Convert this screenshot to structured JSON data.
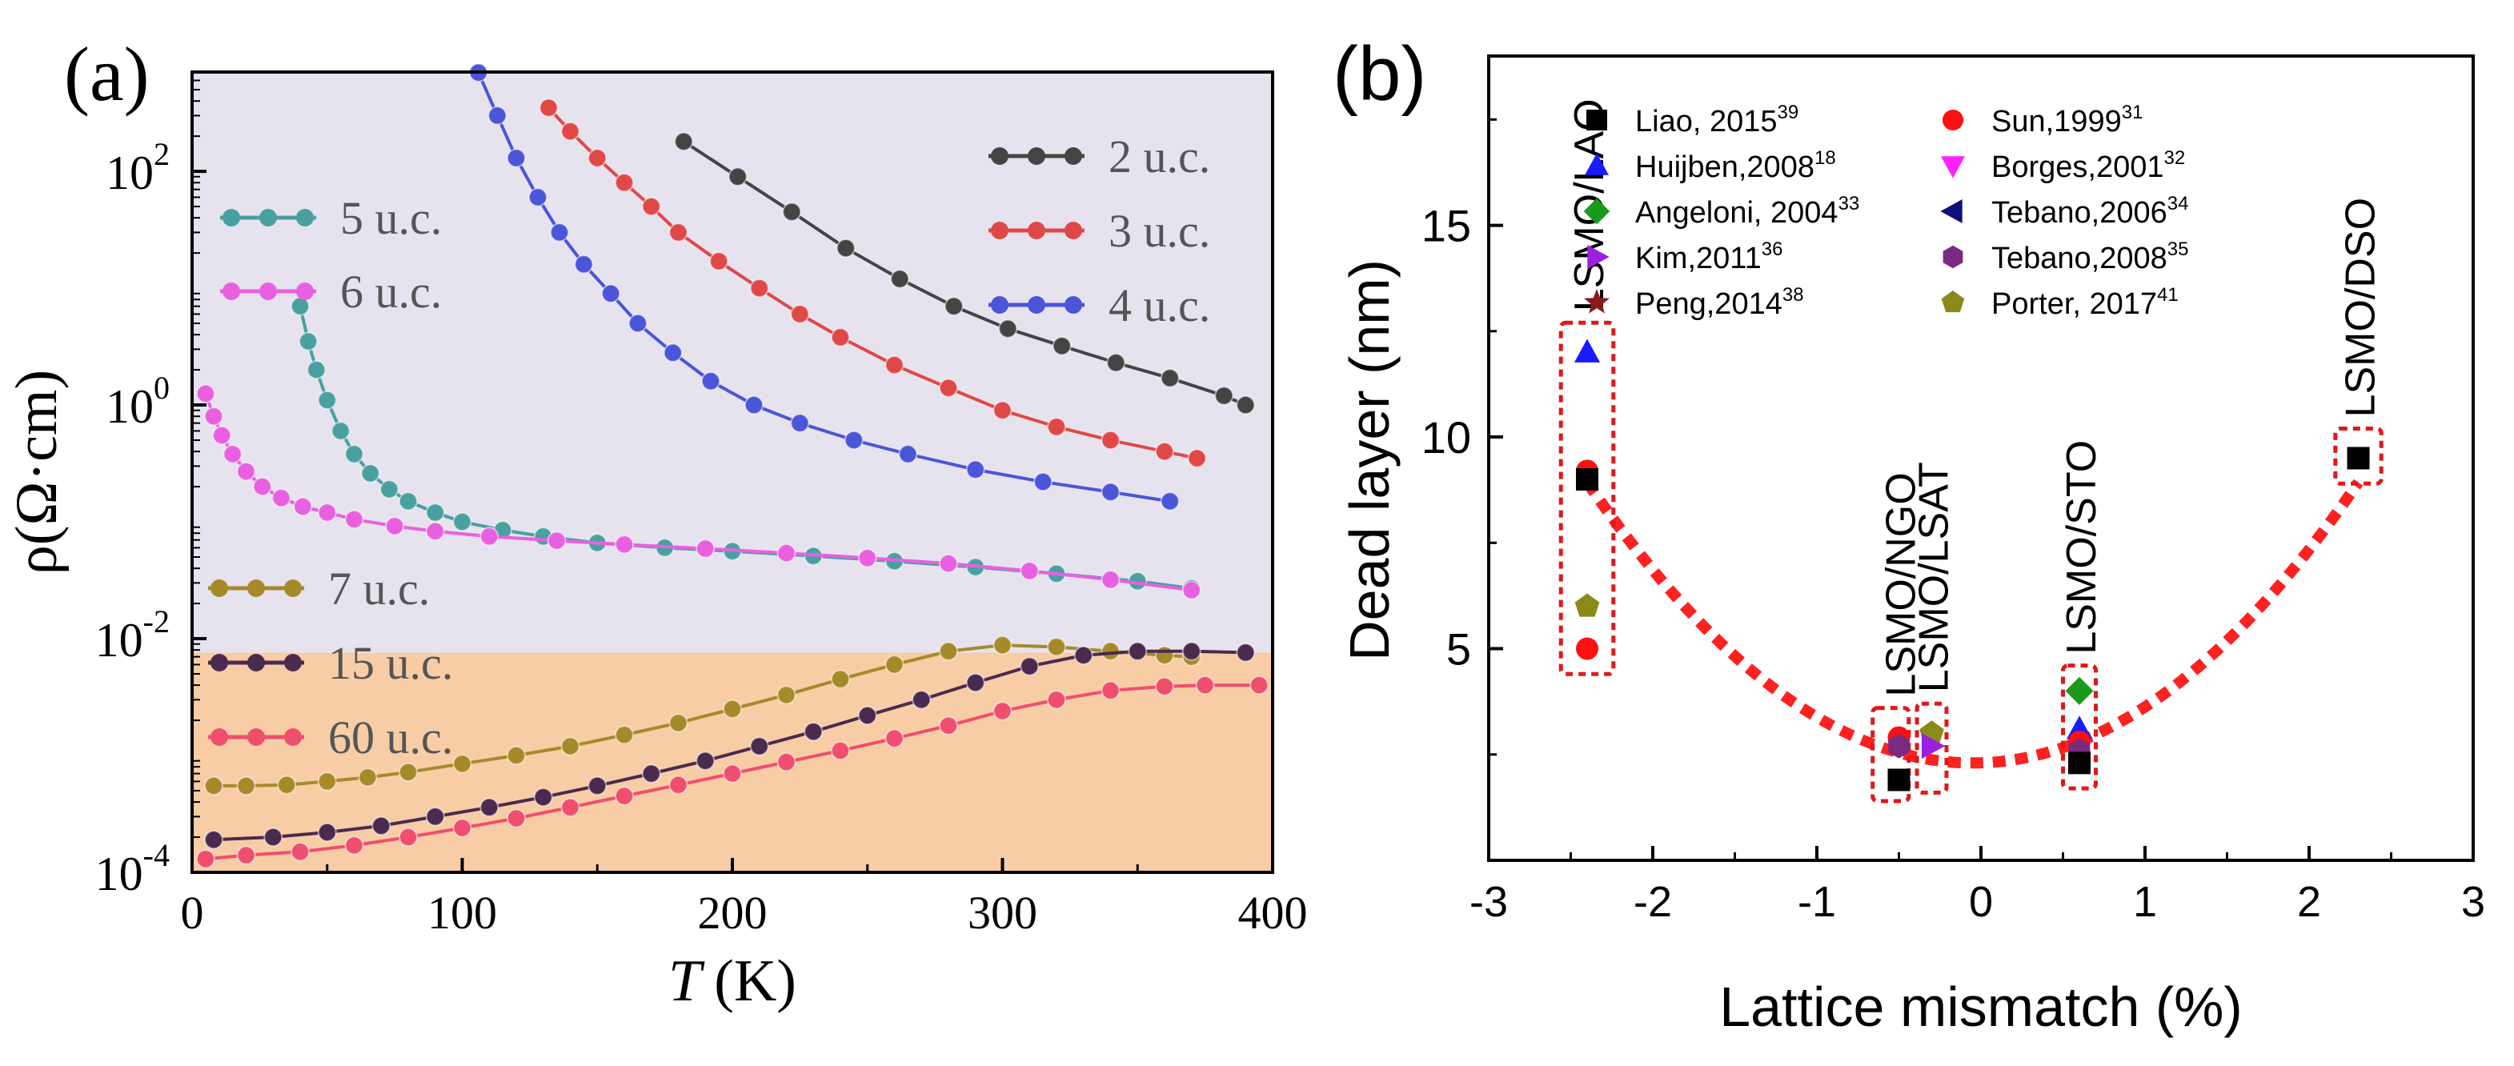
{
  "chart_data": [
    {
      "type": "line",
      "panel_label": "(a)",
      "xlabel_var": "T",
      "xlabel_unit": "(K)",
      "ylabel": "ρ(Ω·cm)",
      "xscale": "linear",
      "yscale": "log",
      "xlim": [
        0,
        400
      ],
      "ylim_log10": [
        -4,
        2.85
      ],
      "xticks": [
        0,
        100,
        200,
        300,
        400
      ],
      "yticks": [
        {
          "base": "10",
          "exp": "-4",
          "log": -4
        },
        {
          "base": "10",
          "exp": "-2",
          "log": -2
        },
        {
          "base": "10",
          "exp": "0",
          "log": 0
        },
        {
          "base": "10",
          "exp": "2",
          "log": 2
        }
      ],
      "background_regions": [
        {
          "from_log10": -2.12,
          "to_log10": 2.85,
          "color": "#e6e3ee"
        },
        {
          "from_log10": -4,
          "to_log10": -2.12,
          "color": "#f8cda5"
        }
      ],
      "series": [
        {
          "name": "2 u.c.",
          "color": "#444444",
          "x": [
            182,
            202,
            222,
            242,
            262,
            282,
            302,
            322,
            342,
            362,
            382,
            390
          ],
          "y": [
            180,
            90,
            45,
            22,
            12,
            7,
            4.5,
            3.2,
            2.3,
            1.7,
            1.2,
            1.0
          ]
        },
        {
          "name": "3 u.c.",
          "color": "#e04848",
          "x": [
            132,
            140,
            150,
            160,
            170,
            180,
            195,
            210,
            225,
            240,
            260,
            280,
            300,
            320,
            340,
            360,
            372
          ],
          "y": [
            350,
            220,
            130,
            80,
            50,
            30,
            17,
            10,
            6,
            3.8,
            2.2,
            1.4,
            0.9,
            0.65,
            0.5,
            0.4,
            0.35
          ]
        },
        {
          "name": "4 u.c.",
          "color": "#4a55d8",
          "x": [
            106,
            113,
            120,
            128,
            136,
            145,
            155,
            165,
            178,
            192,
            208,
            225,
            245,
            265,
            290,
            315,
            340,
            362
          ],
          "y": [
            700,
            300,
            130,
            60,
            30,
            16,
            9,
            5,
            2.8,
            1.6,
            1.0,
            0.7,
            0.5,
            0.38,
            0.28,
            0.22,
            0.18,
            0.15
          ]
        },
        {
          "name": "5 u.c.",
          "color": "#4aa0a0",
          "x": [
            40,
            43,
            46,
            50,
            55,
            60,
            66,
            73,
            80,
            90,
            100,
            115,
            130,
            150,
            175,
            200,
            230,
            260,
            290,
            320,
            350,
            370
          ],
          "y": [
            7,
            3.5,
            2,
            1.1,
            0.6,
            0.38,
            0.26,
            0.19,
            0.15,
            0.12,
            0.1,
            0.085,
            0.075,
            0.066,
            0.06,
            0.056,
            0.051,
            0.046,
            0.041,
            0.036,
            0.031,
            0.027
          ]
        },
        {
          "name": "6 u.c.",
          "color": "#e860e0",
          "x": [
            5,
            8,
            11,
            15,
            20,
            26,
            33,
            41,
            50,
            60,
            75,
            90,
            110,
            135,
            160,
            190,
            220,
            250,
            280,
            310,
            340,
            370
          ],
          "y": [
            1.25,
            0.8,
            0.55,
            0.38,
            0.27,
            0.2,
            0.16,
            0.135,
            0.12,
            0.105,
            0.092,
            0.083,
            0.075,
            0.069,
            0.064,
            0.059,
            0.054,
            0.049,
            0.044,
            0.038,
            0.032,
            0.026
          ]
        },
        {
          "name": "7 u.c.",
          "color": "#a68a2a",
          "x": [
            8,
            20,
            35,
            50,
            65,
            80,
            100,
            120,
            140,
            160,
            180,
            200,
            220,
            240,
            260,
            280,
            300,
            320,
            340,
            360,
            370
          ],
          "y": [
            0.00055,
            0.00055,
            0.00056,
            0.0006,
            0.00065,
            0.00072,
            0.00085,
            0.001,
            0.0012,
            0.0015,
            0.0019,
            0.0025,
            0.0033,
            0.0045,
            0.006,
            0.0078,
            0.0088,
            0.0085,
            0.0078,
            0.0072,
            0.007
          ]
        },
        {
          "name": "15 u.c.",
          "color": "#4a2a4e",
          "x": [
            8,
            30,
            50,
            70,
            90,
            110,
            130,
            150,
            170,
            190,
            210,
            230,
            250,
            270,
            290,
            310,
            330,
            350,
            370,
            390
          ],
          "y": [
            0.00019,
            0.0002,
            0.00022,
            0.00025,
            0.0003,
            0.00036,
            0.00044,
            0.00055,
            0.0007,
            0.0009,
            0.0012,
            0.0016,
            0.0022,
            0.003,
            0.0042,
            0.0058,
            0.0072,
            0.0078,
            0.0078,
            0.0076
          ]
        },
        {
          "name": "60 u.c.",
          "color": "#f04e6e",
          "x": [
            5,
            20,
            40,
            60,
            80,
            100,
            120,
            140,
            160,
            180,
            200,
            220,
            240,
            260,
            280,
            300,
            320,
            340,
            360,
            375,
            395
          ],
          "y": [
            0.00013,
            0.00014,
            0.00015,
            0.00017,
            0.0002,
            0.00024,
            0.00029,
            0.00036,
            0.00045,
            0.00056,
            0.0007,
            0.00088,
            0.0011,
            0.0014,
            0.0018,
            0.0024,
            0.003,
            0.0036,
            0.0039,
            0.004,
            0.004
          ]
        }
      ],
      "legend_left": [
        "5 u.c.",
        "6 u.c."
      ],
      "legend_right": [
        "2 u.c.",
        "3 u.c.",
        "4 u.c."
      ],
      "legend_bottom": [
        "7 u.c.",
        "15 u.c.",
        "60 u.c."
      ]
    },
    {
      "type": "scatter",
      "panel_label": "(b)",
      "xlabel": "Lattice mismatch (%)",
      "ylabel": "Dead layer (nm)",
      "xlim": [
        -3,
        3
      ],
      "ylim": [
        0,
        19
      ],
      "xticks": [
        -3,
        -2,
        -1,
        0,
        1,
        2,
        3
      ],
      "yticks": [
        5,
        10,
        15
      ],
      "fit_curve": {
        "color": "#ff2020",
        "style": "dotted",
        "x0": -0.05,
        "y0": 2.3,
        "a": 1.2
      },
      "substrate_labels": [
        {
          "text": "LSMO/LAO",
          "x": -2.4
        },
        {
          "text": "LSMO/NGO",
          "x": -0.5
        },
        {
          "text": "LSMO/LSAT",
          "x": -0.3
        },
        {
          "text": "LSMO/STO",
          "x": 0.6
        },
        {
          "text": "LSMO/DSO",
          "x": 2.3
        }
      ],
      "highlight_boxes": [
        {
          "x_min": -2.56,
          "x_max": -2.24,
          "y_min": 4.4,
          "y_max": 12.7
        },
        {
          "x_min": -0.66,
          "x_max": -0.44,
          "y_min": 1.4,
          "y_max": 3.6
        },
        {
          "x_min": -0.39,
          "x_max": -0.21,
          "y_min": 1.6,
          "y_max": 3.7
        },
        {
          "x_min": 0.5,
          "x_max": 0.7,
          "y_min": 1.7,
          "y_max": 4.6
        },
        {
          "x_min": 2.16,
          "x_max": 2.44,
          "y_min": 8.9,
          "y_max": 10.2
        }
      ],
      "legend": [
        {
          "label": "Liao, 2015",
          "sup": "39",
          "marker": "square",
          "color": "#000000"
        },
        {
          "label": "Sun,1999",
          "sup": "31",
          "marker": "circle",
          "color": "#ff1010"
        },
        {
          "label": "Huijben,2008",
          "sup": "18",
          "marker": "triangle-up",
          "color": "#1a1aff"
        },
        {
          "label": "Borges,2001",
          "sup": "32",
          "marker": "triangle-down",
          "color": "#ff20ff"
        },
        {
          "label": "Angeloni, 2004",
          "sup": "33",
          "marker": "diamond",
          "color": "#1a9a1a"
        },
        {
          "label": "Tebano,2006",
          "sup": "34",
          "marker": "triangle-left",
          "color": "#10107a"
        },
        {
          "label": "Kim,2011",
          "sup": "36",
          "marker": "triangle-right",
          "color": "#9a20e0"
        },
        {
          "label": "Tebano,2008",
          "sup": "35",
          "marker": "hexagon",
          "color": "#7a2a80"
        },
        {
          "label": "Peng,2014",
          "sup": "38",
          "marker": "star",
          "color": "#8a1a1a"
        },
        {
          "label": "Porter, 2017",
          "sup": "41",
          "marker": "pentagon",
          "color": "#8a8a1a"
        }
      ],
      "points": [
        {
          "x": -2.4,
          "y": 12.0,
          "marker": "triangle-up",
          "color": "#1a1aff"
        },
        {
          "x": -2.4,
          "y": 9.2,
          "marker": "circle",
          "color": "#ff1010"
        },
        {
          "x": -2.4,
          "y": 9.0,
          "marker": "square",
          "color": "#000000"
        },
        {
          "x": -2.4,
          "y": 6.0,
          "marker": "pentagon",
          "color": "#8a8a1a"
        },
        {
          "x": -2.4,
          "y": 5.0,
          "marker": "circle",
          "color": "#ff1010"
        },
        {
          "x": -0.5,
          "y": 2.9,
          "marker": "circle",
          "color": "#ff1010"
        },
        {
          "x": -0.5,
          "y": 2.7,
          "marker": "hexagon",
          "color": "#7a2a80"
        },
        {
          "x": -0.5,
          "y": 1.9,
          "marker": "square",
          "color": "#000000"
        },
        {
          "x": -0.3,
          "y": 3.0,
          "marker": "pentagon",
          "color": "#8a8a1a"
        },
        {
          "x": -0.3,
          "y": 2.7,
          "marker": "triangle-right",
          "color": "#9a20e0"
        },
        {
          "x": 0.6,
          "y": 4.0,
          "marker": "diamond",
          "color": "#1a9a1a"
        },
        {
          "x": 0.6,
          "y": 3.1,
          "marker": "triangle-up",
          "color": "#1a1aff"
        },
        {
          "x": 0.6,
          "y": 2.8,
          "marker": "circle",
          "color": "#ff1010"
        },
        {
          "x": 0.6,
          "y": 2.6,
          "marker": "hexagon",
          "color": "#7a2a80"
        },
        {
          "x": 0.6,
          "y": 2.3,
          "marker": "square",
          "color": "#000000"
        },
        {
          "x": 2.3,
          "y": 9.5,
          "marker": "square",
          "color": "#000000"
        }
      ]
    }
  ]
}
